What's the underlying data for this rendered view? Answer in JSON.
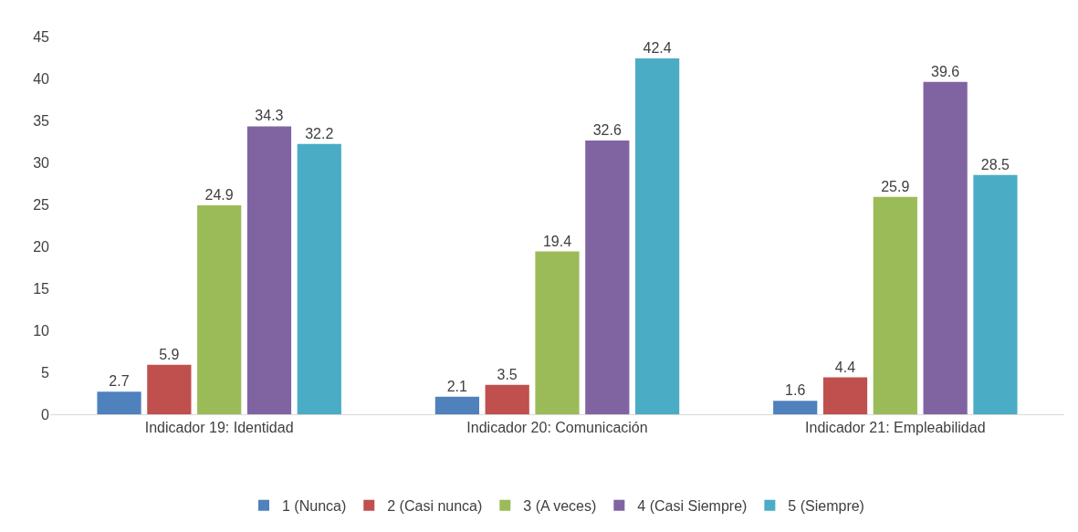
{
  "chart_data": {
    "type": "bar",
    "categories": [
      "Indicador 19: Identidad",
      "Indicador 20: Comunicación",
      "Indicador 21: Empleabilidad"
    ],
    "series": [
      {
        "name": "1 (Nunca)",
        "color": "#4f81bd",
        "values": [
          2.7,
          2.1,
          1.6
        ]
      },
      {
        "name": "2 (Casi nunca)",
        "color": "#c0504d",
        "values": [
          5.9,
          3.5,
          4.4
        ]
      },
      {
        "name": "3 (A veces)",
        "color": "#9bbb59",
        "values": [
          24.9,
          19.4,
          25.9
        ]
      },
      {
        "name": "4 (Casi Siempre)",
        "color": "#8064a2",
        "values": [
          34.3,
          32.6,
          39.6
        ]
      },
      {
        "name": "5 (Siempre)",
        "color": "#4bacc6",
        "values": [
          32.2,
          42.4,
          28.5
        ]
      }
    ],
    "ylim": [
      0,
      45
    ],
    "yticks": [
      0,
      5,
      10,
      15,
      20,
      25,
      30,
      35,
      40,
      45
    ],
    "grid": false,
    "legend": "bottom",
    "data_labels": true
  }
}
